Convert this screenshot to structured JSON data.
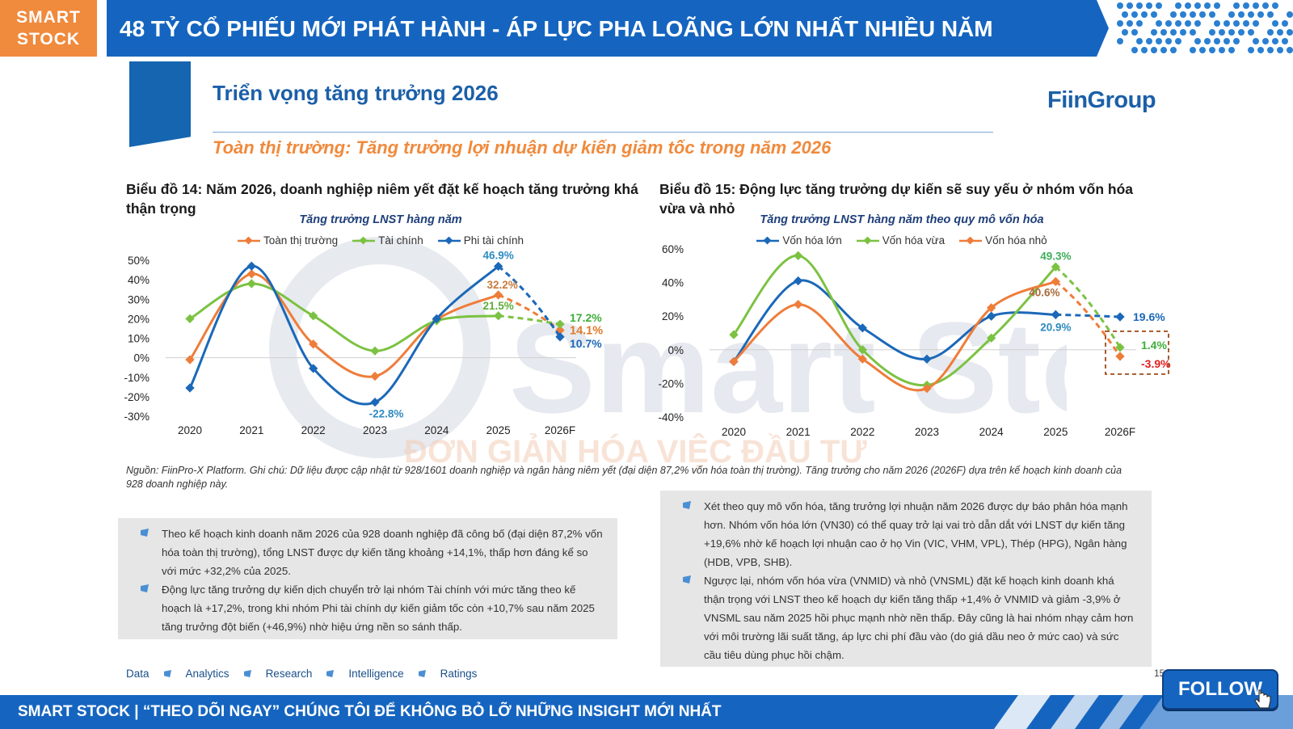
{
  "header": {
    "brand_line1": "SMART",
    "brand_line2": "STOCK",
    "title": "48 TỶ CỔ PHIẾU MỚI PHÁT HÀNH - ÁP LỰC PHA LOÃNG LỚN NHẤT NHIỀU NĂM"
  },
  "section": {
    "title": "Triển vọng tăng trưởng 2026",
    "logo": "FiinGroup",
    "subtitle": "Toàn thị trường: Tăng trưởng lợi nhuận dự kiến giảm tốc trong năm 2026"
  },
  "colors": {
    "orange": "#ee7d3a",
    "green": "#7cc242",
    "blue": "#1b68b8",
    "brand_blue": "#1565c0"
  },
  "chart_data": [
    {
      "type": "line",
      "caption": "Biểu đồ 14: Năm 2026, doanh nghiệp niêm yết đặt kế hoạch tăng trưởng khá thận trọng",
      "title": "Tăng trưởng LNST hàng năm",
      "categories": [
        "2020",
        "2021",
        "2022",
        "2023",
        "2024",
        "2025",
        "2026F"
      ],
      "ylim": [
        -30,
        50
      ],
      "yticks": [
        "50%",
        "40%",
        "30%",
        "20%",
        "10%",
        "0%",
        "-10%",
        "-20%",
        "-30%"
      ],
      "legend_position": "top",
      "series": [
        {
          "name": "Toàn thị trường",
          "color": "#ee7d3a",
          "values": [
            -1,
            43,
            7,
            -9.5,
            19.5,
            32.2,
            14.1
          ]
        },
        {
          "name": "Tài chính",
          "color": "#7cc242",
          "values": [
            20,
            38,
            21.5,
            3.5,
            19,
            21.5,
            17.2
          ]
        },
        {
          "name": "Phi tài chính",
          "color": "#1b68b8",
          "values": [
            -15.5,
            47,
            -5.5,
            -22.8,
            20,
            46.9,
            10.7
          ]
        }
      ],
      "data_labels": [
        {
          "text": "46.9%",
          "series": 2,
          "index": 5,
          "color": "#2e8bc0"
        },
        {
          "text": "32.2%",
          "series": 0,
          "index": 5,
          "color": "#c77a3c"
        },
        {
          "text": "21.5%",
          "series": 1,
          "index": 5,
          "color": "#5fae3a"
        },
        {
          "text": "-22.8%",
          "series": 2,
          "index": 3,
          "color": "#2e8bc0"
        },
        {
          "text": "17.2%",
          "series": 1,
          "index": 6,
          "color": "#3fae3a"
        },
        {
          "text": "14.1%",
          "series": 0,
          "index": 6,
          "color": "#e07a2a"
        },
        {
          "text": "10.7%",
          "series": 2,
          "index": 6,
          "color": "#1b68b8"
        }
      ],
      "forecast_dashed": true
    },
    {
      "type": "line",
      "caption": "Biểu đồ 15: Động lực tăng trưởng dự kiến sẽ suy yếu ở nhóm vốn hóa vừa và nhỏ",
      "title": "Tăng trưởng LNST hàng năm theo quy mô vốn hóa",
      "categories": [
        "2020",
        "2021",
        "2022",
        "2023",
        "2024",
        "2025",
        "2026F"
      ],
      "ylim": [
        -40,
        60
      ],
      "yticks": [
        "60%",
        "40%",
        "20%",
        "0%",
        "-20%",
        "-40%"
      ],
      "legend_position": "top",
      "series": [
        {
          "name": "Vốn hóa lớn",
          "color": "#1b68b8",
          "values": [
            -7,
            41,
            13,
            -5.5,
            20,
            20.9,
            19.6
          ]
        },
        {
          "name": "Vốn hóa vừa",
          "color": "#7cc242",
          "values": [
            9,
            56,
            0,
            -21,
            7,
            49.3,
            1.4
          ]
        },
        {
          "name": "Vốn hóa nhỏ",
          "color": "#ee7d3a",
          "values": [
            -7,
            27,
            -5.5,
            -23,
            25,
            40.6,
            -3.9
          ]
        }
      ],
      "data_labels": [
        {
          "text": "49.3%",
          "series": 1,
          "index": 5,
          "color": "#3fae5a"
        },
        {
          "text": "40.6%",
          "series": 2,
          "index": 5,
          "color": "#a86a3a"
        },
        {
          "text": "20.9%",
          "series": 0,
          "index": 5,
          "color": "#2e8bc0"
        },
        {
          "text": "19.6%",
          "series": 0,
          "index": 6,
          "color": "#1b68b8"
        },
        {
          "text": "1.4%",
          "series": 1,
          "index": 6,
          "color": "#3fae3a"
        },
        {
          "text": "-3.9%",
          "series": 2,
          "index": 6,
          "color": "#e02020"
        }
      ],
      "forecast_dashed": true
    }
  ],
  "source_note": "Nguồn: FiinPro-X Platform. Ghi chú: Dữ liệu được cập nhật từ 928/1601 doanh nghiệp và ngân hàng niêm yết (đại diện 87,2% vốn hóa toàn thị trường). Tăng trưởng cho năm 2026 (2026F) dựa trên kế hoạch kinh doanh của 928 doanh nghiệp này.",
  "notes_left": [
    "Theo kế hoạch kinh doanh năm 2026 của 928 doanh nghiệp đã công bố (đại diện 87,2% vốn hóa toàn thị trường), tổng LNST được dự kiến tăng khoảng +14,1%, thấp hơn đáng kể so với mức +32,2% của 2025.",
    "Động lực tăng trưởng dự kiến dịch chuyển trở lại nhóm Tài chính với mức tăng theo kế hoạch là +17,2%, trong khi nhóm Phi tài chính dự kiến giảm tốc còn +10,7% sau năm 2025 tăng trưởng đột biến (+46,9%) nhờ hiệu ứng nền so sánh thấp."
  ],
  "notes_right": [
    "Xét theo quy mô vốn hóa, tăng trưởng lợi nhuận năm 2026 được dự báo phân hóa mạnh hơn. Nhóm vốn hóa lớn (VN30) có thể quay trở lại vai trò dẫn dắt với LNST dự kiến tăng +19,6% nhờ kế hoạch lợi nhuận cao ở họ Vin (VIC, VHM, VPL), Thép (HPG), Ngân hàng (HDB, VPB, SHB).",
    "Ngược lại, nhóm vốn hóa vừa (VNMID) và nhỏ (VNSML) đặt kế hoạch kinh doanh khá thận trọng với LNST theo kế hoạch dự kiến tăng thấp +1,4% ở VNMID và giảm -3,9% ở VNSML sau năm 2025 hồi phục mạnh nhờ nền thấp. Đây cũng là hai nhóm nhạy cảm hơn với môi trường lãi suất tăng, áp lực chi phí đầu vào (do giá dầu neo ở mức cao) và sức cầu tiêu dùng phục hồi chậm."
  ],
  "footer": {
    "links": [
      "Data",
      "Analytics",
      "Research",
      "Intelligence",
      "Ratings"
    ],
    "page_number": "15",
    "bottom_text": "SMART STOCK | “THEO DÕI NGAY” CHÚNG TÔI ĐỂ KHÔNG BỎ LỠ NHỮNG INSIGHT MỚI NHẤT",
    "follow_label": "FOLLOW"
  },
  "watermark": {
    "text": "Smart Stock",
    "tagline": "ĐƠN GIẢN HÓA VIỆC ĐẦU TƯ"
  }
}
